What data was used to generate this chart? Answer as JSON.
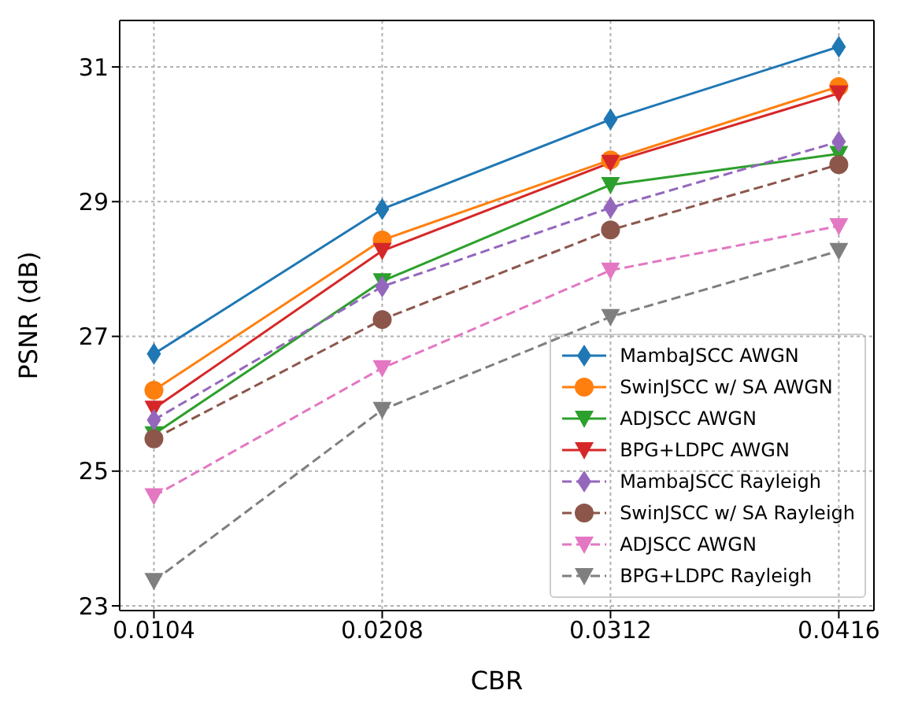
{
  "chart_data": {
    "type": "line",
    "xlabel": "CBR",
    "ylabel": "PSNR (dB)",
    "x": [
      0.0104,
      0.0208,
      0.0312,
      0.0416
    ],
    "xlim": [
      0.00884,
      0.0432
    ],
    "xticks": [
      0.0104,
      0.0208,
      0.0312,
      0.0416
    ],
    "ylim": [
      22.93,
      31.69
    ],
    "yticks": [
      23,
      25,
      27,
      29,
      31
    ],
    "grid": true,
    "legend": "bottom right",
    "series": [
      {
        "name": "MambaJSCC AWGN",
        "color": "#1f77b4",
        "marker": "diamond",
        "line_style": "solid",
        "values": [
          26.74,
          28.89,
          30.22,
          31.3
        ]
      },
      {
        "name": "SwinJSCC w/ SA AWGN",
        "color": "#ff7f0e",
        "marker": "circle",
        "line_style": "solid",
        "values": [
          26.2,
          28.43,
          29.62,
          30.71
        ]
      },
      {
        "name": "ADJSCC AWGN",
        "color": "#2ca02c",
        "marker": "triangle-down",
        "line_style": "solid",
        "values": [
          25.55,
          27.82,
          29.25,
          29.71
        ]
      },
      {
        "name": "BPG+LDPC AWGN",
        "color": "#d62728",
        "marker": "triangle-down",
        "line_style": "solid",
        "values": [
          25.93,
          28.27,
          29.58,
          30.61
        ]
      },
      {
        "name": "MambaJSCC Rayleigh",
        "color": "#9467bd",
        "marker": "diamond",
        "line_style": "dashed",
        "values": [
          25.76,
          27.74,
          28.91,
          29.89
        ]
      },
      {
        "name": "SwinJSCC w/ SA Rayleigh",
        "color": "#8c564b",
        "marker": "circle",
        "line_style": "dashed",
        "values": [
          25.48,
          27.25,
          28.58,
          29.55
        ]
      },
      {
        "name": "ADJSCC AWGN",
        "color": "#e377c2",
        "marker": "triangle-down",
        "line_style": "dashed",
        "values": [
          24.63,
          26.53,
          27.98,
          28.64
        ]
      },
      {
        "name": "BPG+LDPC Rayleigh",
        "color": "#7f7f7f",
        "marker": "triangle-down",
        "line_style": "dashed",
        "values": [
          23.37,
          25.91,
          27.29,
          28.27
        ]
      }
    ]
  }
}
